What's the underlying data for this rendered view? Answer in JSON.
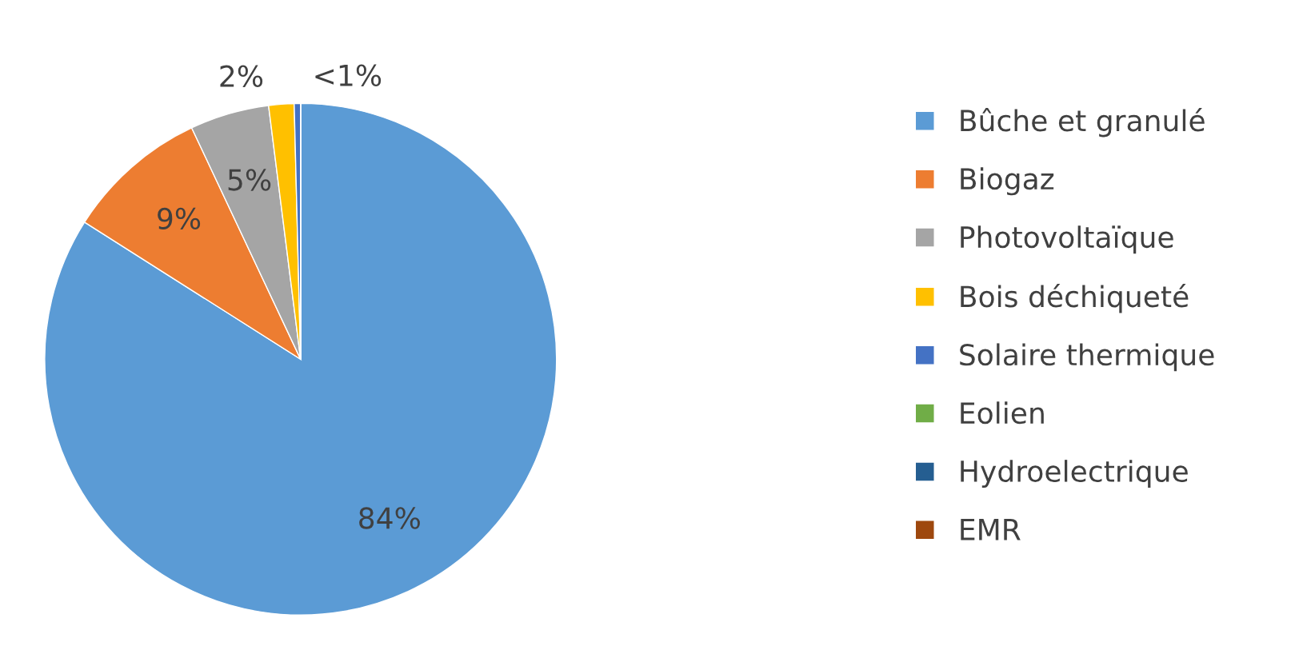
{
  "chart_data": {
    "type": "pie",
    "categories": [
      "Bûche et granulé",
      "Biogaz",
      "Photovoltaïque",
      "Bois déchiqueté",
      "Solaire thermique",
      "Eolien",
      "Hydroelectrique",
      "EMR"
    ],
    "values": [
      84,
      9,
      5,
      1.6,
      0.4,
      0,
      0,
      0
    ],
    "value_labels": [
      "84%",
      "9%",
      "5%",
      "2%",
      "<1%",
      null,
      null,
      null
    ],
    "colors": [
      "#5b9bd5",
      "#ed7d31",
      "#a5a5a5",
      "#ffc000",
      "#4472c4",
      "#70ad47",
      "#255e91",
      "#9e480e"
    ],
    "legend": "right"
  }
}
